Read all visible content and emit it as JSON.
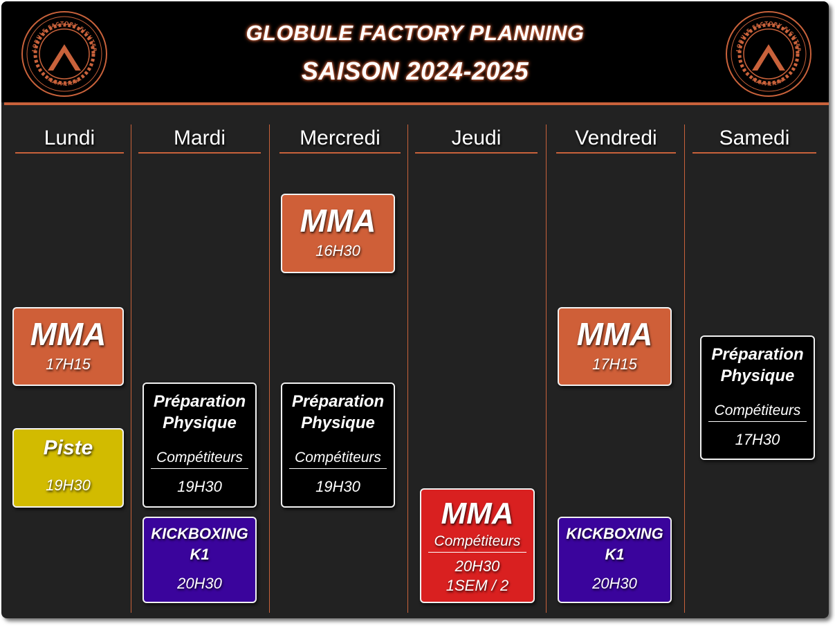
{
  "header": {
    "title": "GLOBULE FACTORY PLANNING",
    "subtitle": "SAISON 2024-2025",
    "logo_text_top": "GLOBULE FACTORY FIGHTERS",
    "logo_text_bottom": "TEAM PIETZRAK",
    "logo_text_left": "MMA - K1",
    "logo_text_right": "KICK - MMA"
  },
  "colors": {
    "accent": "#c9623b",
    "mma": "#cf5f38",
    "piste": "#d2bb00",
    "black_card": "#000000",
    "kickboxing": "#3a049c",
    "mma_competiteurs": "#d92020",
    "background": "#222222"
  },
  "days": [
    {
      "name": "Lundi",
      "sessions": [
        {
          "title": "MMA",
          "time": "17H15"
        },
        {
          "title": "Piste",
          "time": "19H30"
        }
      ]
    },
    {
      "name": "Mardi",
      "sessions": [
        {
          "title_line1": "Préparation",
          "title_line2": "Physique",
          "group": "Compétiteurs",
          "time": "19H30"
        },
        {
          "title_line1": "KICKBOXING",
          "title_line2": "K1",
          "time": "20H30"
        }
      ]
    },
    {
      "name": "Mercredi",
      "sessions": [
        {
          "title": "MMA",
          "time": "16H30"
        },
        {
          "title_line1": "Préparation",
          "title_line2": "Physique",
          "group": "Compétiteurs",
          "time": "19H30"
        }
      ]
    },
    {
      "name": "Jeudi",
      "sessions": [
        {
          "title": "MMA",
          "group": "Compétiteurs",
          "time": "20H30",
          "frequency": "1SEM / 2"
        }
      ]
    },
    {
      "name": "Vendredi",
      "sessions": [
        {
          "title": "MMA",
          "time": "17H15"
        },
        {
          "title_line1": "KICKBOXING",
          "title_line2": "K1",
          "time": "20H30"
        }
      ]
    },
    {
      "name": "Samedi",
      "sessions": [
        {
          "title_line1": "Préparation",
          "title_line2": "Physique",
          "group": "Compétiteurs",
          "time": "17H30"
        }
      ]
    }
  ]
}
